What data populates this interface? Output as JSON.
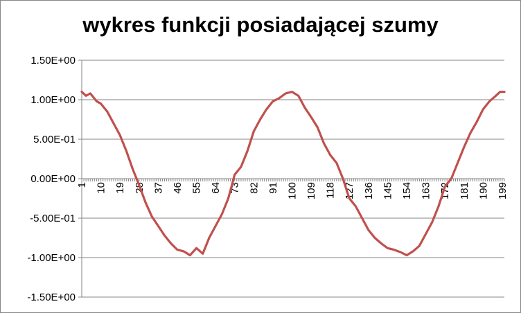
{
  "chart_data": {
    "type": "line",
    "title": "wykres funkcji posiadającej szumy",
    "xlabel": "",
    "ylabel": "",
    "x_range": [
      1,
      200
    ],
    "ylim": [
      -1.5,
      1.5
    ],
    "y_ticks": [
      1.5,
      1.0,
      0.5,
      0.0,
      -0.5,
      -1.0,
      -1.5
    ],
    "y_tick_labels": [
      "1.50E+00",
      "1.00E+00",
      "5.00E-01",
      "0.00E+00",
      "-5.00E-01",
      "-1.00E+00",
      "-1.50E+00"
    ],
    "x_tick_labels": [
      "1",
      "10",
      "19",
      "28",
      "37",
      "46",
      "55",
      "64",
      "73",
      "82",
      "91",
      "100",
      "109",
      "118",
      "127",
      "136",
      "145",
      "154",
      "163",
      "172",
      "181",
      "190",
      "199"
    ],
    "grid": "horizontal",
    "legend": "none",
    "line_color": "#C0504D",
    "series": [
      {
        "x": [
          1,
          3,
          5,
          8,
          10,
          13,
          16,
          19,
          22,
          25,
          28,
          31,
          34,
          37,
          40,
          43,
          46,
          49,
          52,
          55,
          58,
          61,
          64,
          67,
          70,
          73,
          76,
          79,
          82,
          85,
          88,
          91,
          94,
          97,
          100,
          103,
          106,
          109,
          112,
          115,
          118,
          121,
          124,
          127,
          130,
          133,
          136,
          139,
          142,
          145,
          148,
          151,
          154,
          157,
          160,
          163,
          166,
          169,
          172,
          175,
          178,
          181,
          184,
          187,
          190,
          193,
          196,
          198,
          200
        ],
        "y": [
          1.1,
          1.05,
          1.08,
          0.98,
          0.95,
          0.85,
          0.7,
          0.55,
          0.35,
          0.12,
          -0.08,
          -0.3,
          -0.48,
          -0.6,
          -0.72,
          -0.82,
          -0.9,
          -0.92,
          -0.97,
          -0.88,
          -0.95,
          -0.75,
          -0.6,
          -0.45,
          -0.25,
          0.05,
          0.15,
          0.35,
          0.6,
          0.75,
          0.88,
          0.98,
          1.02,
          1.08,
          1.1,
          1.05,
          0.9,
          0.78,
          0.65,
          0.45,
          0.3,
          0.2,
          0.0,
          -0.25,
          -0.35,
          -0.5,
          -0.65,
          -0.75,
          -0.82,
          -0.88,
          -0.9,
          -0.93,
          -0.97,
          -0.92,
          -0.85,
          -0.7,
          -0.55,
          -0.35,
          -0.1,
          0.0,
          0.2,
          0.4,
          0.58,
          0.72,
          0.88,
          0.98,
          1.05,
          1.1,
          1.1
        ]
      }
    ]
  }
}
